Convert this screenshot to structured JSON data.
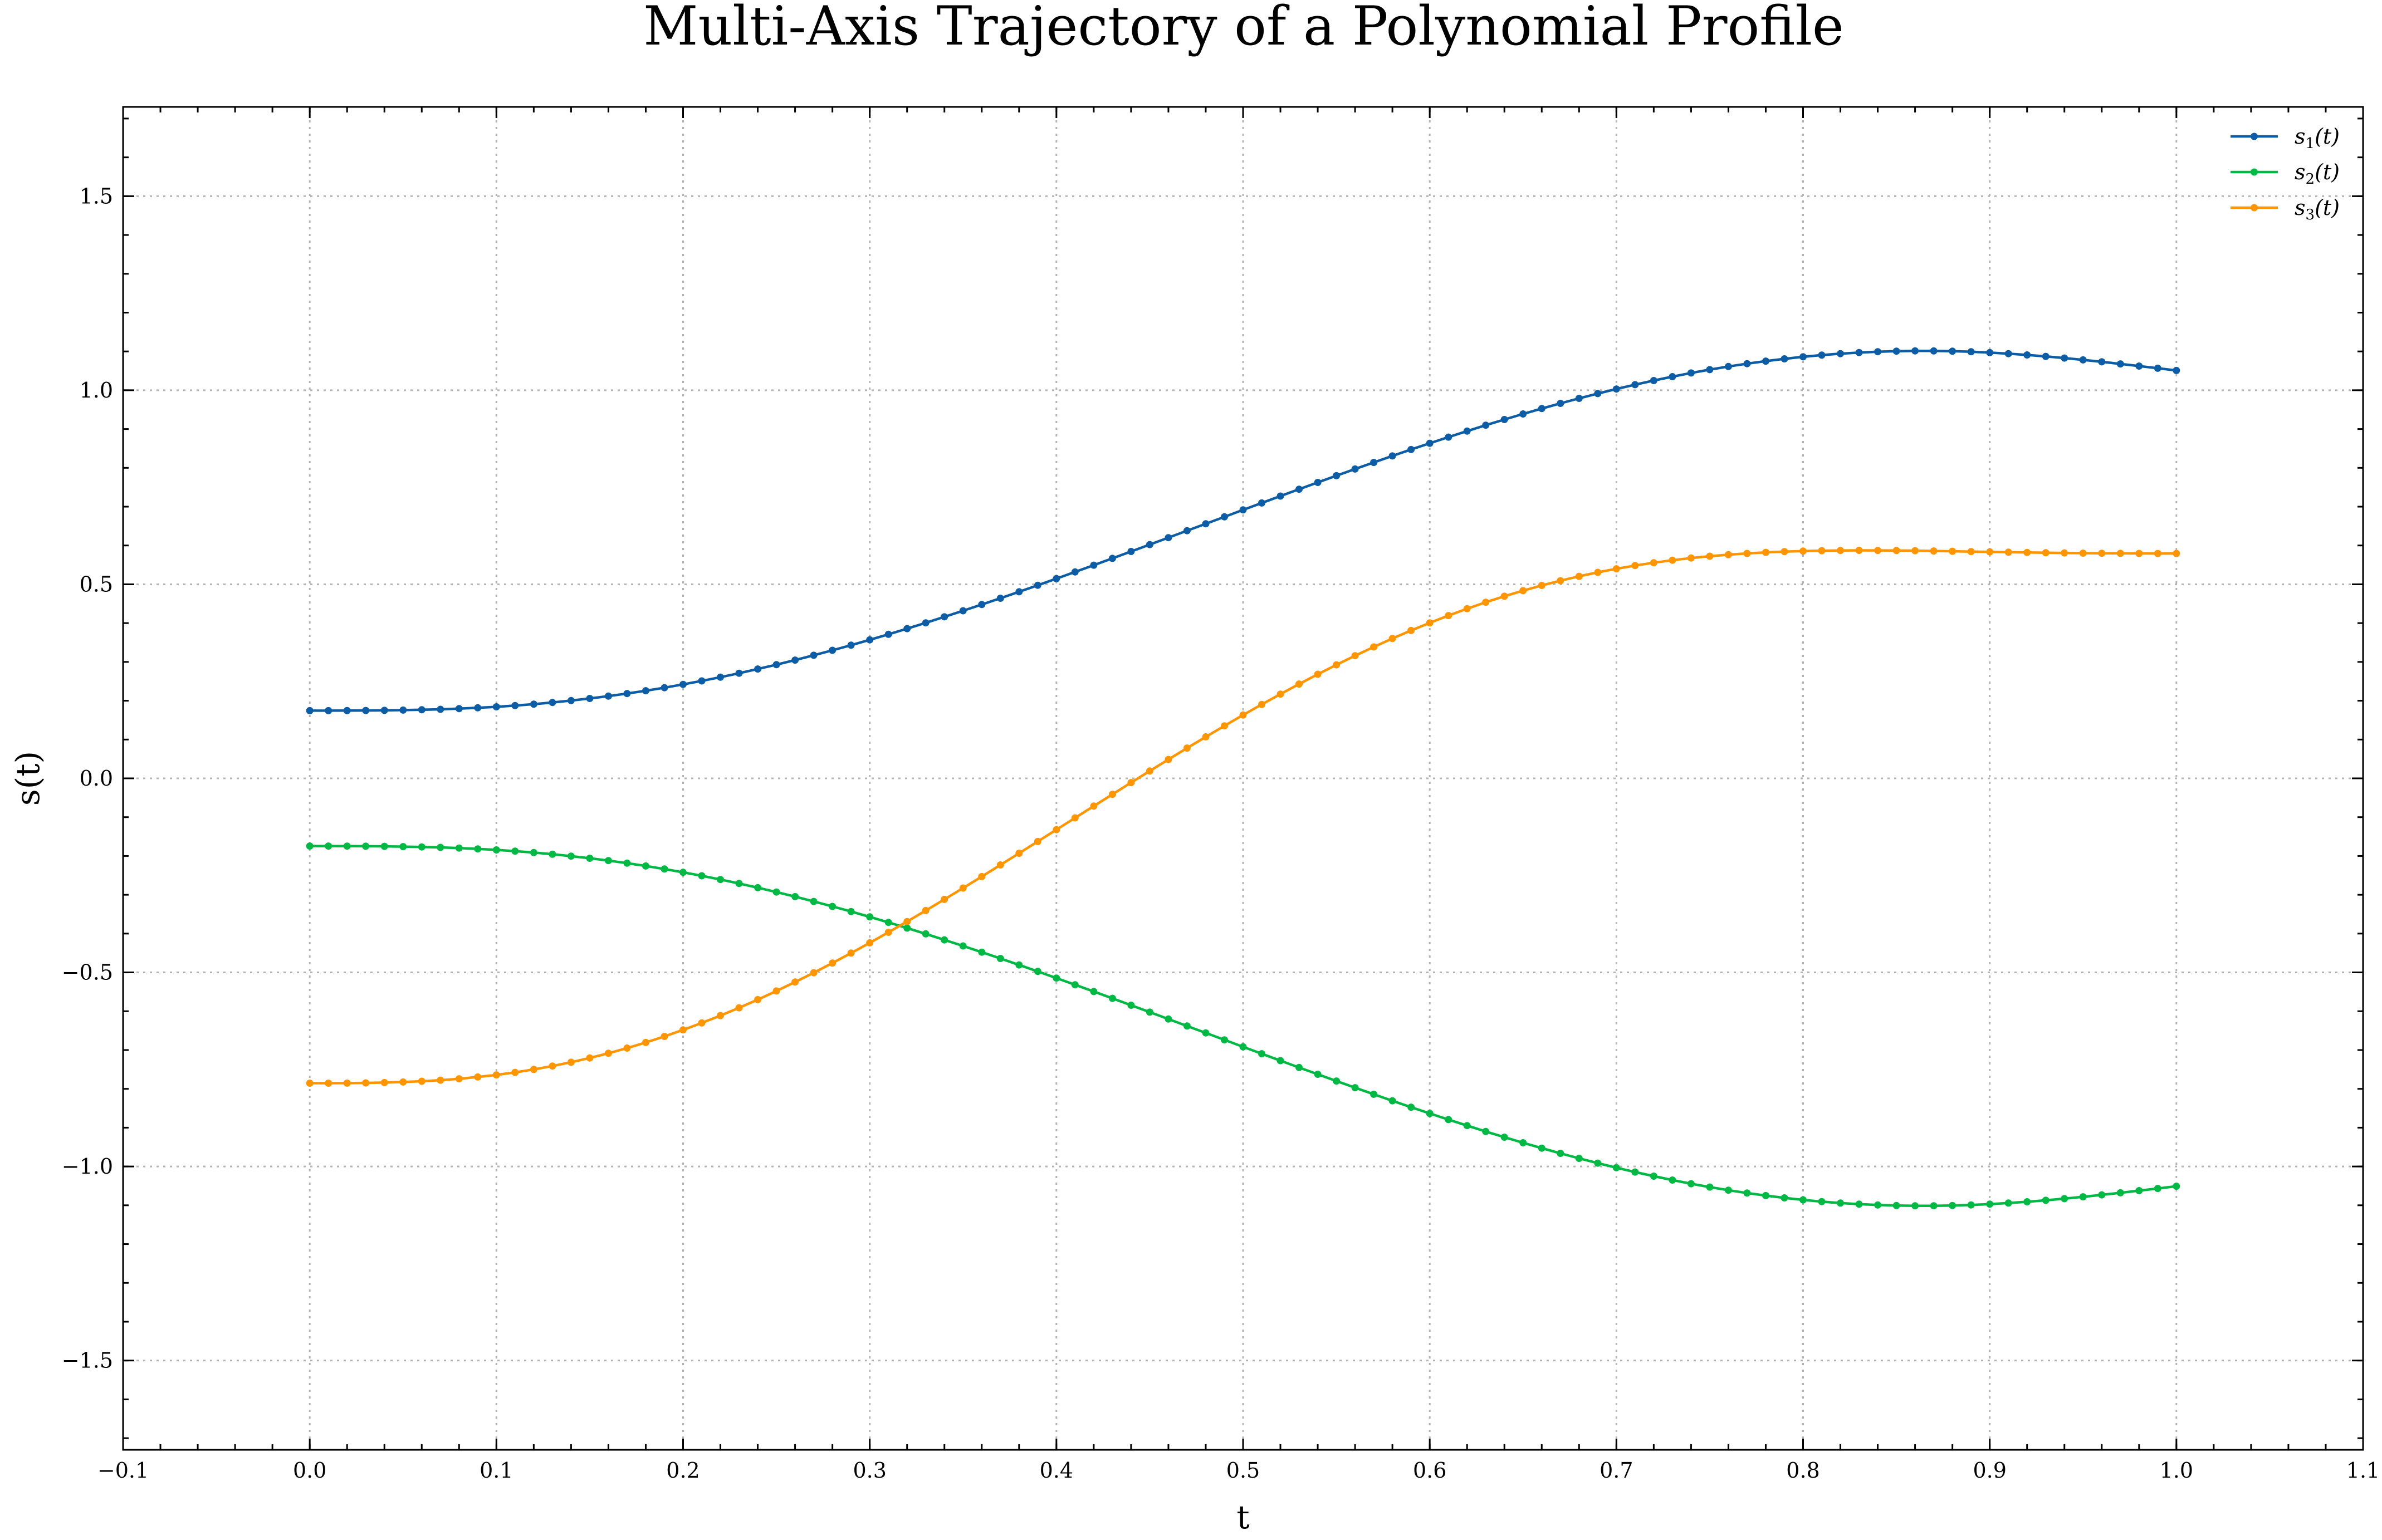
{
  "chart_data": {
    "type": "line",
    "title": "Multi-Axis Trajectory of a Polynomial Profile",
    "xlabel": "t",
    "ylabel": "s(t)",
    "xlim": [
      -0.1,
      1.1
    ],
    "ylim": [
      -1.73,
      1.73
    ],
    "x_ticks": [
      -0.1,
      0.0,
      0.1,
      0.2,
      0.3,
      0.4,
      0.5,
      0.6,
      0.7,
      0.8,
      0.9,
      1.0,
      1.1
    ],
    "x_tick_labels": [
      "−0.1",
      "0.0",
      "0.1",
      "0.2",
      "0.3",
      "0.4",
      "0.5",
      "0.6",
      "0.7",
      "0.8",
      "0.9",
      "1.0",
      "1.1"
    ],
    "y_ticks": [
      -1.5,
      -1.0,
      -0.5,
      0.0,
      0.5,
      1.0,
      1.5
    ],
    "y_tick_labels": [
      "−1.5",
      "−1.0",
      "−0.5",
      "0.0",
      "0.5",
      "1.0",
      "1.5"
    ],
    "grid": true,
    "legend_position": "top-right",
    "x": [
      0.0,
      0.01,
      0.02,
      0.03,
      0.04,
      0.05,
      0.06,
      0.07,
      0.08,
      0.09,
      0.1,
      0.11,
      0.12,
      0.13,
      0.14,
      0.15,
      0.16,
      0.17,
      0.18,
      0.19,
      0.2,
      0.21,
      0.22,
      0.23,
      0.24,
      0.25,
      0.26,
      0.27,
      0.28,
      0.29,
      0.3,
      0.31,
      0.32,
      0.33,
      0.34,
      0.35,
      0.36,
      0.37,
      0.38,
      0.39,
      0.4,
      0.41,
      0.42,
      0.43,
      0.44,
      0.45,
      0.46,
      0.47,
      0.48,
      0.49,
      0.5,
      0.51,
      0.52,
      0.53,
      0.54,
      0.55,
      0.56,
      0.57,
      0.58,
      0.59,
      0.6,
      0.61,
      0.62,
      0.63,
      0.64,
      0.65,
      0.66,
      0.67,
      0.68,
      0.69,
      0.7,
      0.71,
      0.72,
      0.73,
      0.74,
      0.75,
      0.76,
      0.77,
      0.78,
      0.79,
      0.8,
      0.81,
      0.82,
      0.83,
      0.84,
      0.85,
      0.86,
      0.87,
      0.88,
      0.89,
      0.9,
      0.91,
      0.92,
      0.93,
      0.94,
      0.95,
      0.96,
      0.97,
      0.98,
      0.99,
      1.0
    ],
    "series": [
      {
        "name": "s1(t)",
        "legend_main": "s",
        "legend_sub": "1",
        "legend_tail": "(t)",
        "color": "#0C5DA5",
        "values": [
          0.1745,
          0.1745,
          0.1746,
          0.1748,
          0.1751,
          0.1758,
          0.1767,
          0.1779,
          0.1796,
          0.1817,
          0.1843,
          0.1875,
          0.1912,
          0.1955,
          0.2004,
          0.2058,
          0.2119,
          0.2185,
          0.2258,
          0.2336,
          0.2421,
          0.2511,
          0.2607,
          0.2709,
          0.2817,
          0.2929,
          0.3047,
          0.3171,
          0.3299,
          0.3432,
          0.3569,
          0.3711,
          0.3857,
          0.4007,
          0.4161,
          0.4318,
          0.4478,
          0.4641,
          0.4807,
          0.4975,
          0.5146,
          0.5318,
          0.5493,
          0.5668,
          0.5845,
          0.6023,
          0.6201,
          0.638,
          0.6559,
          0.6738,
          0.6917,
          0.7095,
          0.7273,
          0.7449,
          0.7625,
          0.7798,
          0.797,
          0.814,
          0.8307,
          0.8472,
          0.8634,
          0.8792,
          0.8947,
          0.9099,
          0.9246,
          0.9389,
          0.9528,
          0.9662,
          0.9791,
          0.9914,
          1.0032,
          1.0144,
          1.025,
          1.035,
          1.0444,
          1.0531,
          1.0611,
          1.0684,
          1.075,
          1.0809,
          1.0861,
          1.0905,
          1.0942,
          1.0971,
          1.0993,
          1.1007,
          1.1014,
          1.1013,
          1.1006,
          1.0991,
          1.097,
          1.0943,
          1.091,
          1.0872,
          1.0829,
          1.0782,
          1.0731,
          1.0678,
          1.0622,
          1.0566,
          1.0509
        ]
      },
      {
        "name": "s2(t)",
        "legend_main": "s",
        "legend_sub": "2",
        "legend_tail": "(t)",
        "color": "#00B945",
        "values": [
          -0.1745,
          -0.1745,
          -0.1746,
          -0.1748,
          -0.1751,
          -0.1758,
          -0.1767,
          -0.1779,
          -0.1796,
          -0.1817,
          -0.1843,
          -0.1875,
          -0.1912,
          -0.1955,
          -0.2004,
          -0.2058,
          -0.2119,
          -0.2185,
          -0.2258,
          -0.2336,
          -0.2421,
          -0.2511,
          -0.2607,
          -0.2709,
          -0.2817,
          -0.2929,
          -0.3047,
          -0.3171,
          -0.3299,
          -0.3432,
          -0.3569,
          -0.3711,
          -0.3857,
          -0.4007,
          -0.4161,
          -0.4318,
          -0.4478,
          -0.4641,
          -0.4807,
          -0.4975,
          -0.5146,
          -0.5318,
          -0.5493,
          -0.5668,
          -0.5845,
          -0.6023,
          -0.6201,
          -0.638,
          -0.6559,
          -0.6738,
          -0.6917,
          -0.7095,
          -0.7273,
          -0.7449,
          -0.7625,
          -0.7798,
          -0.797,
          -0.814,
          -0.8307,
          -0.8472,
          -0.8634,
          -0.8792,
          -0.8947,
          -0.9099,
          -0.9246,
          -0.9389,
          -0.9528,
          -0.9662,
          -0.9791,
          -0.9914,
          -1.0032,
          -1.0144,
          -1.025,
          -1.035,
          -1.0444,
          -1.0531,
          -1.0611,
          -1.0684,
          -1.075,
          -1.0809,
          -1.0861,
          -1.0905,
          -1.0942,
          -1.0971,
          -1.0993,
          -1.1007,
          -1.1014,
          -1.1013,
          -1.1006,
          -1.0991,
          -1.097,
          -1.0943,
          -1.091,
          -1.0872,
          -1.0829,
          -1.0782,
          -1.0731,
          -1.0678,
          -1.0622,
          -1.0566,
          -1.0509
        ]
      },
      {
        "name": "s3(t)",
        "legend_main": "s",
        "legend_sub": "3",
        "legend_tail": "(t)",
        "color": "#FF9500",
        "values": [
          -0.7854,
          -0.7854,
          -0.7852,
          -0.7847,
          -0.7838,
          -0.7824,
          -0.7804,
          -0.7776,
          -0.774,
          -0.7695,
          -0.764,
          -0.7575,
          -0.7499,
          -0.7412,
          -0.7314,
          -0.7204,
          -0.7083,
          -0.695,
          -0.6805,
          -0.6649,
          -0.6481,
          -0.6302,
          -0.6112,
          -0.5911,
          -0.57,
          -0.5479,
          -0.5248,
          -0.5008,
          -0.4759,
          -0.4502,
          -0.4238,
          -0.3967,
          -0.3689,
          -0.3406,
          -0.3118,
          -0.2826,
          -0.253,
          -0.2231,
          -0.193,
          -0.1627,
          -0.1323,
          -0.1019,
          -0.0714,
          -0.0411,
          -0.0109,
          0.019,
          0.0487,
          0.078,
          0.1069,
          0.1353,
          0.1632,
          0.1905,
          0.2171,
          0.243,
          0.2682,
          0.2925,
          0.316,
          0.3386,
          0.3603,
          0.381,
          0.4007,
          0.4194,
          0.4371,
          0.4537,
          0.4692,
          0.4836,
          0.497,
          0.5093,
          0.5206,
          0.5308,
          0.54,
          0.5483,
          0.5556,
          0.562,
          0.5676,
          0.5723,
          0.5763,
          0.5796,
          0.5822,
          0.5842,
          0.5856,
          0.5866,
          0.5872,
          0.5874,
          0.5873,
          0.587,
          0.5865,
          0.5858,
          0.5851,
          0.5843,
          0.5835,
          0.5827,
          0.582,
          0.5813,
          0.5808,
          0.5803,
          0.5799,
          0.5797,
          0.5795,
          0.5794,
          0.5794
        ]
      }
    ]
  }
}
